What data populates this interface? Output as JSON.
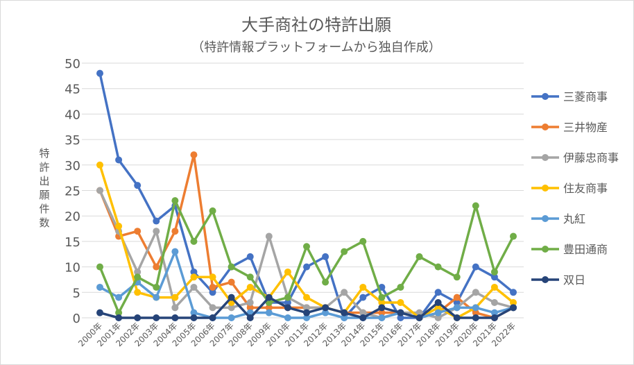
{
  "chart_data": {
    "type": "line",
    "title": "大手商社の特許出願",
    "subtitle": "（特許情報プラットフォームから独自作成）",
    "ylabel": "特許出願件数",
    "xlabel": "",
    "ylim": [
      0,
      50
    ],
    "yticks": [
      0,
      5,
      10,
      15,
      20,
      25,
      30,
      35,
      40,
      45,
      50
    ],
    "grid": true,
    "legend_position": "right",
    "x": [
      "2000年",
      "2001年",
      "2002年",
      "2003年",
      "2004年",
      "2005年",
      "2006年",
      "2007年",
      "2008年",
      "2009年",
      "2010年",
      "2011年",
      "2012年",
      "2013年",
      "2014年",
      "2015年",
      "2016年",
      "2017年",
      "2018年",
      "2019年",
      "2020年",
      "2021年",
      "2022年"
    ],
    "series": [
      {
        "name": "三菱商事",
        "color": "#4472c4",
        "values": [
          48,
          31,
          26,
          19,
          22,
          9,
          5,
          10,
          12,
          3,
          3,
          10,
          12,
          0,
          4,
          6,
          0,
          0,
          5,
          3,
          10,
          8,
          5
        ]
      },
      {
        "name": "三井物産",
        "color": "#ed7d31",
        "values": [
          25,
          16,
          17,
          10,
          17,
          32,
          6,
          7,
          2,
          2,
          2,
          2,
          2,
          1,
          1,
          1,
          1,
          0,
          1,
          4,
          1,
          0,
          2
        ]
      },
      {
        "name": "伊藤忠商事",
        "color": "#a5a5a5",
        "values": [
          25,
          17,
          9,
          17,
          2,
          6,
          2,
          2,
          3,
          16,
          4,
          2,
          2,
          5,
          1,
          0,
          1,
          1,
          0,
          2,
          5,
          3,
          2
        ]
      },
      {
        "name": "住友商事",
        "color": "#ffc000",
        "values": [
          30,
          18,
          5,
          4,
          4,
          8,
          8,
          3,
          6,
          4,
          9,
          4,
          2,
          1,
          6,
          3,
          3,
          0,
          2,
          0,
          2,
          6,
          3
        ]
      },
      {
        "name": "丸紅",
        "color": "#5b9bd5",
        "values": [
          6,
          4,
          7,
          4,
          13,
          1,
          0,
          0,
          1,
          1,
          0,
          0,
          1,
          0,
          0,
          0,
          1,
          0,
          1,
          2,
          2,
          1,
          2
        ]
      },
      {
        "name": "豊田通商",
        "color": "#70ad47",
        "values": [
          10,
          1,
          8,
          6,
          23,
          15,
          21,
          10,
          8,
          3,
          4,
          14,
          7,
          13,
          15,
          4,
          6,
          12,
          10,
          8,
          22,
          9,
          16
        ]
      },
      {
        "name": "双日",
        "color": "#264478",
        "values": [
          1,
          0,
          0,
          0,
          0,
          0,
          0,
          4,
          0,
          4,
          2,
          1,
          2,
          1,
          0,
          2,
          1,
          0,
          3,
          0,
          0,
          0,
          2
        ]
      }
    ]
  }
}
